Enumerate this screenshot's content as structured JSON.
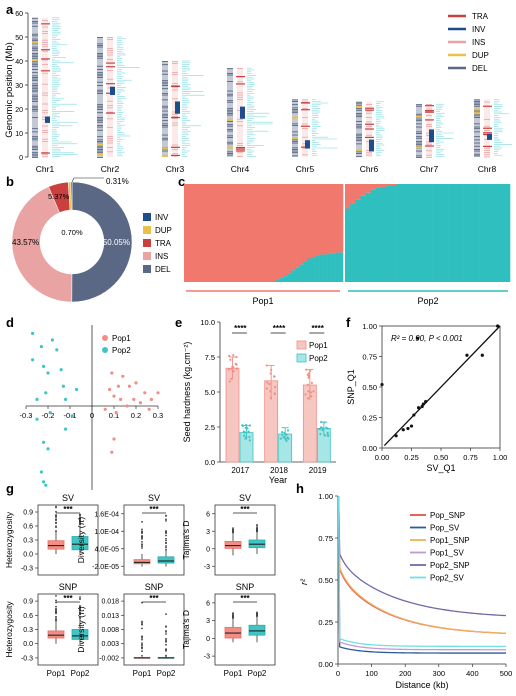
{
  "colors": {
    "TRA": "#c9403f",
    "INV": "#1f4e8c",
    "INS": "#e9a3a3",
    "DUP": "#e8c04a",
    "DEL": "#5a6785",
    "pop1": "#f28e86",
    "pop2": "#41c4c4",
    "pop1_strong": "#f0786d",
    "pop2_strong": "#2fbfbf",
    "pop_snp": "#e0564a",
    "pop_sv": "#2f5a9a",
    "pop1_snp": "#f0b060",
    "pop1_sv": "#c19bd2",
    "pop2_snp": "#6e6aa8",
    "pop2_sv": "#6fe0e8"
  },
  "panels": {
    "a": {
      "label": "a"
    },
    "b": {
      "label": "b"
    },
    "c": {
      "label": "c"
    },
    "d": {
      "label": "d"
    },
    "e": {
      "label": "e"
    },
    "f": {
      "label": "f"
    },
    "g": {
      "label": "g"
    },
    "h": {
      "label": "h"
    }
  },
  "panel_a": {
    "ylabel": "Genomic position (Mb)",
    "yticks": [
      "0",
      "10",
      "20",
      "30",
      "40",
      "50",
      "60"
    ],
    "chromosomes": [
      {
        "name": "Chr1",
        "length": 58
      },
      {
        "name": "Chr2",
        "length": 50
      },
      {
        "name": "Chr3",
        "length": 40
      },
      {
        "name": "Chr4",
        "length": 37
      },
      {
        "name": "Chr5",
        "length": 24
      },
      {
        "name": "Chr6",
        "length": 23
      },
      {
        "name": "Chr7",
        "length": 22
      },
      {
        "name": "Chr8",
        "length": 24
      }
    ],
    "legend": [
      "TRA",
      "INV",
      "INS",
      "DUP",
      "DEL"
    ]
  },
  "chart_data": [
    {
      "panel": "b",
      "type": "pie",
      "labels": [
        "INV",
        "DUP",
        "TRA",
        "INS",
        "DEL"
      ],
      "values": [
        0.31,
        0.7,
        5.37,
        43.57,
        50.05
      ],
      "slice_labels": [
        "0.31%",
        "0.70%",
        "5.37%",
        "43.57%",
        "50.05%"
      ]
    },
    {
      "panel": "c",
      "type": "bar",
      "groups": [
        "Pop1",
        "Pop2"
      ],
      "pop1_q2": [
        0,
        0,
        0,
        0,
        0,
        0,
        0,
        0,
        0,
        0,
        0,
        0,
        0,
        0,
        0,
        0,
        0,
        0,
        0,
        0,
        0,
        0,
        0,
        0.02,
        0.04,
        0.06,
        0.09,
        0.12,
        0.15,
        0.18,
        0.21,
        0.24,
        0.25,
        0.27,
        0.28,
        0.28,
        0.29,
        0.29,
        0.3,
        0.3
      ],
      "pop2_q2": [
        0.75,
        0.8,
        0.84,
        0.88,
        0.91,
        0.94,
        0.96,
        0.97,
        0.98,
        0.99,
        1,
        1,
        1,
        1,
        1,
        1,
        1,
        1,
        1,
        1,
        1,
        1,
        1,
        1,
        1,
        1,
        1,
        1,
        1,
        1,
        1,
        1
      ]
    },
    {
      "panel": "d",
      "type": "scatter",
      "xticks": [
        "-0.3",
        "-0.2",
        "-0.1",
        "0",
        "0.1",
        "0.2",
        "0.3"
      ],
      "legend": [
        "Pop1",
        "Pop2"
      ],
      "pop1": [
        [
          0.09,
          0.1
        ],
        [
          0.14,
          0.09
        ],
        [
          0.2,
          0.07
        ],
        [
          0.17,
          0.06
        ],
        [
          0.12,
          0.06
        ],
        [
          0.08,
          0.05
        ],
        [
          0.24,
          0.04
        ],
        [
          0.1,
          0.03
        ],
        [
          0.19,
          0.02
        ],
        [
          0.13,
          0.02
        ],
        [
          0.22,
          0.01
        ],
        [
          0.16,
          0.0
        ],
        [
          0.06,
          -0.01
        ],
        [
          0.27,
          0.02
        ],
        [
          0.26,
          -0.01
        ],
        [
          0.11,
          -0.02
        ],
        [
          0.3,
          0.04
        ],
        [
          0.1,
          -0.1
        ],
        [
          0.09,
          -0.14
        ]
      ],
      "pop2": [
        [
          -0.27,
          0.22
        ],
        [
          -0.18,
          0.2
        ],
        [
          -0.23,
          0.18
        ],
        [
          -0.16,
          0.17
        ],
        [
          -0.27,
          0.14
        ],
        [
          -0.22,
          0.12
        ],
        [
          -0.14,
          0.11
        ],
        [
          -0.2,
          0.1
        ],
        [
          -0.13,
          0.06
        ],
        [
          -0.07,
          0.05
        ],
        [
          -0.21,
          0.04
        ],
        [
          -0.12,
          0.02
        ],
        [
          -0.25,
          0.02
        ],
        [
          -0.09,
          -0.03
        ],
        [
          -0.19,
          -0.02
        ],
        [
          -0.25,
          -0.04
        ],
        [
          -0.12,
          -0.07
        ],
        [
          -0.22,
          -0.11
        ],
        [
          -0.2,
          -0.13
        ],
        [
          -0.23,
          -0.2
        ],
        [
          -0.22,
          -0.23
        ],
        [
          -0.21,
          -0.24
        ]
      ]
    },
    {
      "panel": "e",
      "type": "bar",
      "ylabel": "Seed hardness (kg.cm⁻²)",
      "xlabel": "Year",
      "categories": [
        "2017",
        "2018",
        "2019"
      ],
      "yticks": [
        "0.0",
        "2.5",
        "5.0",
        "7.5",
        "10.0"
      ],
      "ylim": [
        0,
        10
      ],
      "series": [
        {
          "name": "Pop1",
          "values": [
            6.7,
            5.8,
            5.5
          ],
          "err": [
            0.8,
            1.1,
            1.1
          ]
        },
        {
          "name": "Pop2",
          "values": [
            2.1,
            2.0,
            2.4
          ],
          "err": [
            0.5,
            0.45,
            0.45
          ]
        }
      ],
      "significance": [
        "****",
        "****",
        "****"
      ]
    },
    {
      "panel": "f",
      "type": "scatter",
      "xlabel": "SV_Q1",
      "ylabel": "SNP_Q1",
      "annotation": "R² = 0.90, P < 0.001",
      "xticks": [
        "0.00",
        "0.25",
        "0.50",
        "0.75",
        "1.00"
      ],
      "yticks": [
        "0.00",
        "0.25",
        "0.50",
        "0.75",
        "1.00"
      ],
      "points": [
        [
          0.0,
          0.52
        ],
        [
          0.12,
          0.1
        ],
        [
          0.18,
          0.15
        ],
        [
          0.22,
          0.16
        ],
        [
          0.25,
          0.18
        ],
        [
          0.27,
          0.27
        ],
        [
          0.3,
          0.9
        ],
        [
          0.31,
          0.33
        ],
        [
          0.34,
          0.34
        ],
        [
          0.35,
          0.36
        ],
        [
          0.37,
          0.38
        ],
        [
          0.72,
          0.76
        ],
        [
          0.85,
          0.76
        ],
        [
          0.98,
          1.0
        ]
      ]
    },
    {
      "panel": "g",
      "type": "box",
      "categories": [
        "Pop1",
        "Pop2"
      ],
      "rows": [
        [
          {
            "title": "SV",
            "ylabel": "Heterozygosity",
            "yticks": [
              "-0.3",
              "0.0",
              "0.3",
              "0.6",
              "0.9"
            ],
            "sig": "***"
          },
          {
            "title": "SV",
            "ylabel": "Diversity (π)",
            "yticks": [
              "-2.0E-05",
              "4.0E-05",
              "1.0E-04",
              "1.6E-04"
            ],
            "sig": "***"
          },
          {
            "title": "SV",
            "ylabel": "Tajima's D",
            "yticks": [
              "-3",
              "0",
              "3",
              "6"
            ],
            "sig": "***"
          }
        ],
        [
          {
            "title": "SNP",
            "ylabel": "Heterozygosity",
            "yticks": [
              "-0.3",
              "0.0",
              "0.3",
              "0.6",
              "0.9"
            ],
            "sig": "***"
          },
          {
            "title": "SNP",
            "ylabel": "Diversity (π)",
            "yticks": [
              "-0.002",
              "0.003",
              "0.008",
              "0.013",
              "0.018"
            ],
            "sig": "***"
          },
          {
            "title": "SNP",
            "ylabel": "Tajima's D",
            "yticks": [
              "-3",
              "0",
              "3",
              "6"
            ],
            "sig": "***"
          }
        ]
      ]
    },
    {
      "panel": "h",
      "type": "line",
      "xlabel": "Distance (kb)",
      "ylabel": "r²",
      "xticks": [
        "0",
        "100",
        "200",
        "300",
        "400",
        "500"
      ],
      "yticks": [
        "0.00",
        "0.25",
        "0.50",
        "0.75",
        "1.00"
      ],
      "xlim": [
        0,
        500
      ],
      "ylim": [
        0,
        1
      ],
      "series": [
        {
          "name": "Pop_SNP",
          "c": 0.17,
          "a": 0.35,
          "tau": 150
        },
        {
          "name": "Pop_SV",
          "c": 0.065,
          "a": 0.04,
          "tau": 60
        },
        {
          "name": "Pop1_SNP",
          "c": 0.17,
          "a": 0.36,
          "tau": 150
        },
        {
          "name": "Pop1_SV",
          "c": 0.085,
          "a": 0.05,
          "tau": 60
        },
        {
          "name": "Pop2_SNP",
          "c": 0.27,
          "a": 0.34,
          "tau": 170
        },
        {
          "name": "Pop2_SV",
          "c": 0.105,
          "a": 0.05,
          "tau": 60
        }
      ]
    }
  ]
}
